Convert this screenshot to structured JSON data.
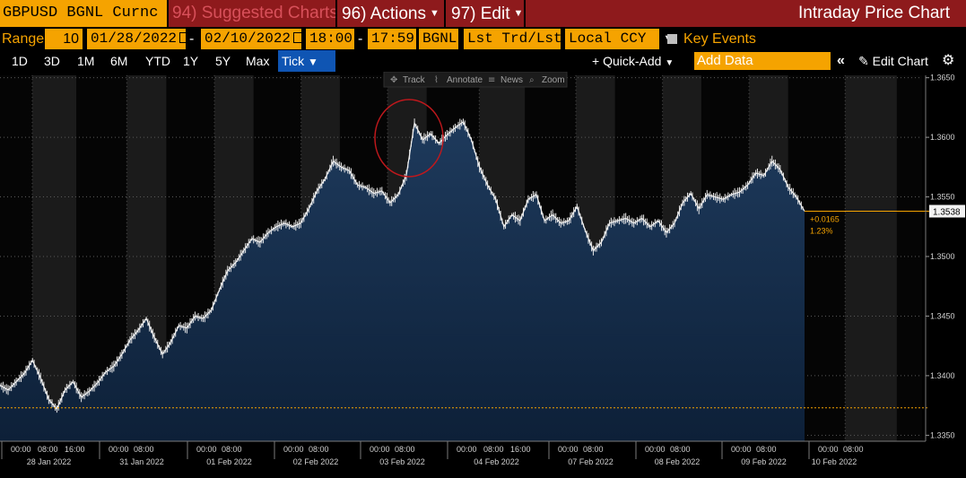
{
  "topbar": {
    "ticker": "GBPUSD BGNL Curnc",
    "suggested": "94) Suggested Charts",
    "actions": "96) Actions",
    "edit": "97) Edit",
    "title": "Intraday Price Chart"
  },
  "settings": {
    "range_label": "Range",
    "range_value": "10",
    "start_date": "01/28/2022",
    "end_date": "02/10/2022",
    "dash": "-",
    "start_time": "18:00",
    "end_time": "17:59",
    "source": "BGNL",
    "field": "Lst Trd/Lst P",
    "currency": "Local CCY",
    "key_events": "Key Events"
  },
  "toolbar": {
    "periods": [
      "1D",
      "3D",
      "1M",
      "6M",
      "YTD",
      "1Y",
      "5Y",
      "Max"
    ],
    "tick_label": "Tick",
    "quick_add": "+ Quick-Add",
    "add_data_placeholder": "Add Data",
    "edit_chart": "Edit Chart"
  },
  "chart_tools": {
    "track": "Track",
    "annotate": "Annotate",
    "news": "News",
    "zoom": "Zoom"
  },
  "chart_data": {
    "type": "area",
    "title": "",
    "ylim": [
      1.3345,
      1.3652
    ],
    "y_ticks": [
      1.335,
      1.34,
      1.345,
      1.35,
      1.355,
      1.36,
      1.365
    ],
    "y_tick_labels": [
      "1.3350",
      "1.3400",
      "1.3450",
      "1.3500",
      "1.3550",
      "1.3600",
      "1.3650"
    ],
    "days": [
      {
        "label": "28 Jan 2022",
        "times": [
          "00:00",
          "08:00",
          "16:00"
        ]
      },
      {
        "label": "31 Jan 2022",
        "times": [
          "00:00",
          "08:00"
        ]
      },
      {
        "label": "01 Feb 2022",
        "times": [
          "00:00",
          "08:00"
        ]
      },
      {
        "label": "02 Feb 2022",
        "times": [
          "00:00",
          "08:00"
        ]
      },
      {
        "label": "03 Feb 2022",
        "times": [
          "00:00",
          "08:00"
        ]
      },
      {
        "label": "04 Feb 2022",
        "times": [
          "00:00",
          "08:00",
          "16:00"
        ]
      },
      {
        "label": "07 Feb 2022",
        "times": [
          "00:00",
          "08:00"
        ]
      },
      {
        "label": "08 Feb 2022",
        "times": [
          "00:00",
          "08:00"
        ]
      },
      {
        "label": "09 Feb 2022",
        "times": [
          "00:00",
          "08:00"
        ]
      },
      {
        "label": "10 Feb 2022",
        "times": [
          "00:00",
          "08:00"
        ]
      }
    ],
    "series": [
      {
        "values": [
          1.3392,
          1.3388,
          1.3395,
          1.3402,
          1.3413,
          1.3398,
          1.338,
          1.3372,
          1.3388,
          1.3395,
          1.3382,
          1.3387,
          1.3394,
          1.3403,
          1.3408,
          1.3418,
          1.343,
          1.3438,
          1.3448,
          1.3432,
          1.3418,
          1.3428,
          1.3442,
          1.344,
          1.345,
          1.3448,
          1.3455,
          1.3472,
          1.3488,
          1.3495,
          1.3505,
          1.3515,
          1.3512,
          1.352,
          1.3525,
          1.3528,
          1.3525,
          1.3528,
          1.354,
          1.3555,
          1.3565,
          1.358,
          1.3575,
          1.3572,
          1.356,
          1.3558,
          1.3553,
          1.3555,
          1.3545,
          1.3552,
          1.3568,
          1.3612,
          1.3598,
          1.3603,
          1.3595,
          1.3602,
          1.3608,
          1.3613,
          1.3598,
          1.3575,
          1.356,
          1.3548,
          1.3525,
          1.3535,
          1.353,
          1.3548,
          1.3552,
          1.353,
          1.3535,
          1.3528,
          1.353,
          1.3542,
          1.3522,
          1.3505,
          1.3512,
          1.3528,
          1.353,
          1.3532,
          1.3528,
          1.3532,
          1.3525,
          1.353,
          1.352,
          1.3528,
          1.3545,
          1.3553,
          1.354,
          1.3552,
          1.355,
          1.3548,
          1.3552,
          1.3554,
          1.356,
          1.357,
          1.3568,
          1.358,
          1.3573,
          1.3558,
          1.355,
          1.3538
        ],
        "current_value": 1.3538,
        "current_label": "1.3538",
        "change": "+0.0165",
        "change_pct": "1.23%",
        "reference_line": 1.3373
      }
    ]
  }
}
